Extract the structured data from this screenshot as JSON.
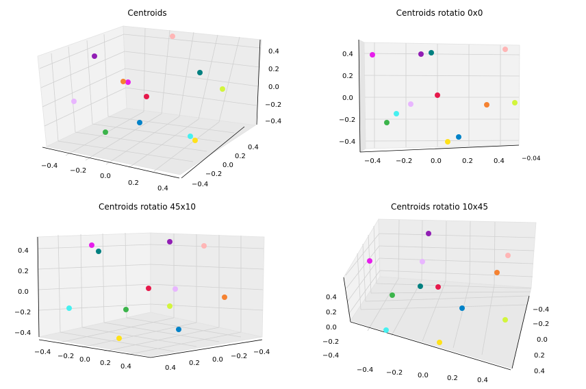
{
  "chart_data": [
    {
      "type": "scatter",
      "title": "Centroids",
      "x_ticks": [
        "−0.4",
        "−0.2",
        "0.0",
        "0.2",
        "0.4"
      ],
      "y_ticks": [
        "−0.4",
        "−0.2",
        "0.0",
        "0.2",
        "0.4"
      ],
      "z_ticks": [
        "−0.4",
        "−0.2",
        "0.0",
        "0.2",
        "0.4"
      ]
    },
    {
      "type": "scatter",
      "title": "Centroids rotatio 0x0",
      "x_ticks": [
        "−0.4",
        "−0.2",
        "0.0",
        "0.2",
        "0.4"
      ],
      "z_ticks": [
        "−0.4",
        "−0.2",
        "0.0",
        "0.2",
        "0.4"
      ],
      "y_tick_label": "−0.04"
    },
    {
      "type": "scatter",
      "title": "Centroids rotatio 45x10",
      "x_ticks": [
        "−0.4",
        "−0.2",
        "0.0",
        "0.2",
        "0.4"
      ],
      "y_ticks": [
        "−0.4",
        "−0.2",
        "0.0",
        "0.2",
        "0.4"
      ],
      "z_ticks": [
        "−0.4",
        "−0.2",
        "0.0",
        "0.2",
        "0.4"
      ]
    },
    {
      "type": "scatter",
      "title": "Centroids rotatio 10x45",
      "x_ticks": [
        "−0.4",
        "−0.2",
        "0.0",
        "0.2",
        "0.4"
      ],
      "y_ticks": [
        "−0.4",
        "−0.2",
        "0.0",
        "0.2",
        "0.4"
      ],
      "z_ticks": [
        "−0.4",
        "−0.2",
        "0.0",
        "0.2",
        "0.4"
      ]
    }
  ],
  "points": [
    {
      "color": "#e61eeb",
      "x": -0.45,
      "y": -0.35,
      "z": 0.37
    },
    {
      "color": "#911eb4",
      "x": -0.13,
      "y": 0.41,
      "z": 0.38
    },
    {
      "color": "#008080",
      "x": -0.05,
      "y": 0.2,
      "z": 0.39
    },
    {
      "color": "#ffb6b6",
      "x": 0.48,
      "y": 0.36,
      "z": 0.42
    },
    {
      "color": "#e6194b",
      "x": -0.02,
      "y": -0.1,
      "z": 0.02
    },
    {
      "color": "#e8b6ff",
      "x": -0.2,
      "y": -0.05,
      "z": -0.07
    },
    {
      "color": "#f58231",
      "x": 0.3,
      "y": -0.3,
      "z": -0.08
    },
    {
      "color": "#d2f53c",
      "x": 0.47,
      "y": 0.05,
      "z": -0.05
    },
    {
      "color": "#46f0f0",
      "x": -0.28,
      "y": -0.35,
      "z": -0.15
    },
    {
      "color": "#3cb44b",
      "x": -0.35,
      "y": -0.1,
      "z": -0.22
    },
    {
      "color": "#0082c8",
      "x": 0.12,
      "y": 0.1,
      "z": -0.35
    },
    {
      "color": "#ffe119",
      "x": 0.05,
      "y": -0.32,
      "z": -0.4
    }
  ]
}
